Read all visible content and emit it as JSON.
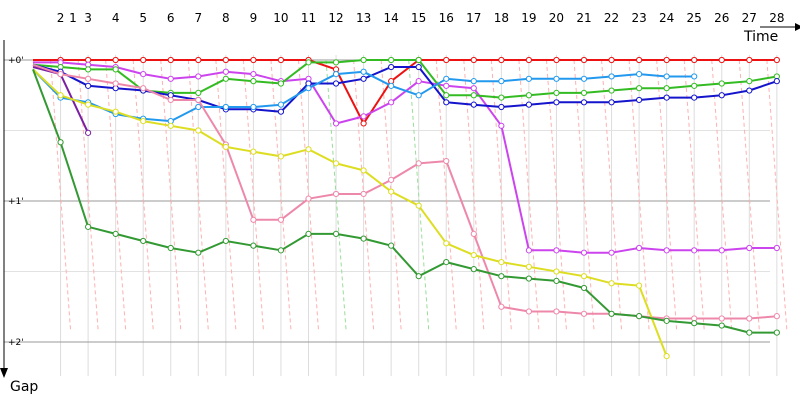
{
  "chart_data": {
    "type": "line",
    "title": "",
    "xlabel": "Time",
    "ylabel": "Gap",
    "x": [
      1,
      2,
      3,
      4,
      5,
      6,
      7,
      8,
      9,
      10,
      11,
      12,
      13,
      14,
      15,
      16,
      17,
      18,
      19,
      20,
      21,
      22,
      23,
      24,
      25,
      26,
      27,
      28
    ],
    "ytick_labels": [
      "+0'",
      "+1'",
      "+2'"
    ],
    "ytick_values": [
      0,
      60,
      120
    ],
    "ylim": [
      0,
      130
    ],
    "series": [
      {
        "name": "red",
        "color": "#ee1111",
        "values": [
          0,
          0,
          0,
          0,
          0,
          0,
          0,
          0,
          0,
          0,
          0,
          4,
          27,
          9,
          0,
          0,
          0,
          0,
          0,
          0,
          0,
          0,
          0,
          0,
          0,
          0,
          0,
          0
        ]
      },
      {
        "name": "violet",
        "color": "#7a1fa2",
        "values": [
          3,
          6,
          31,
          null,
          null,
          null,
          null,
          null,
          null,
          null,
          null,
          null,
          null,
          null,
          null,
          null,
          null,
          null,
          null,
          null,
          null,
          null,
          null,
          null,
          null,
          null,
          null,
          null
        ]
      },
      {
        "name": "magenta",
        "color": "#cc44ee",
        "values": [
          1,
          1,
          2,
          3,
          6,
          8,
          7,
          5,
          6,
          9,
          8,
          27,
          24,
          18,
          9,
          11,
          12,
          28,
          81,
          81,
          82,
          82,
          80,
          81,
          81,
          81,
          80,
          80
        ]
      },
      {
        "name": "green",
        "color": "#33bb22",
        "values": [
          2,
          3,
          4,
          4,
          13,
          14,
          14,
          8,
          9,
          10,
          1,
          1,
          0,
          0,
          0,
          15,
          15,
          16,
          15,
          14,
          14,
          13,
          12,
          12,
          11,
          10,
          9,
          7
        ]
      },
      {
        "name": "navy",
        "color": "#1414cc",
        "values": [
          2,
          5,
          11,
          12,
          13,
          15,
          17,
          21,
          21,
          22,
          10,
          10,
          8,
          3,
          3,
          18,
          19,
          20,
          19,
          18,
          18,
          18,
          17,
          16,
          16,
          15,
          13,
          9
        ]
      },
      {
        "name": "skyblue",
        "color": "#2299ee",
        "values": [
          4,
          16,
          18,
          23,
          25,
          26,
          20,
          20,
          20,
          19,
          12,
          6,
          5,
          11,
          15,
          8,
          9,
          9,
          8,
          8,
          8,
          7,
          6,
          7,
          7,
          null,
          null,
          null
        ]
      },
      {
        "name": "pink",
        "color": "#ee88aa",
        "values": [
          2,
          6,
          8,
          10,
          12,
          17,
          17,
          36,
          68,
          68,
          59,
          57,
          57,
          51,
          44,
          43,
          74,
          105,
          107,
          107,
          108,
          108,
          109,
          110,
          110,
          110,
          110,
          109
        ]
      },
      {
        "name": "yellow",
        "color": "#dddd22",
        "values": [
          4,
          15,
          19,
          22,
          26,
          28,
          30,
          37,
          39,
          41,
          38,
          44,
          47,
          56,
          62,
          78,
          83,
          86,
          88,
          90,
          92,
          95,
          96,
          126,
          null,
          null,
          null,
          null
        ]
      },
      {
        "name": "darkgreen",
        "color": "#339933",
        "values": [
          4,
          35,
          71,
          74,
          77,
          80,
          82,
          77,
          79,
          81,
          74,
          74,
          76,
          79,
          92,
          86,
          89,
          92,
          93,
          94,
          97,
          108,
          109,
          111,
          112,
          113,
          116,
          116
        ]
      }
    ]
  }
}
